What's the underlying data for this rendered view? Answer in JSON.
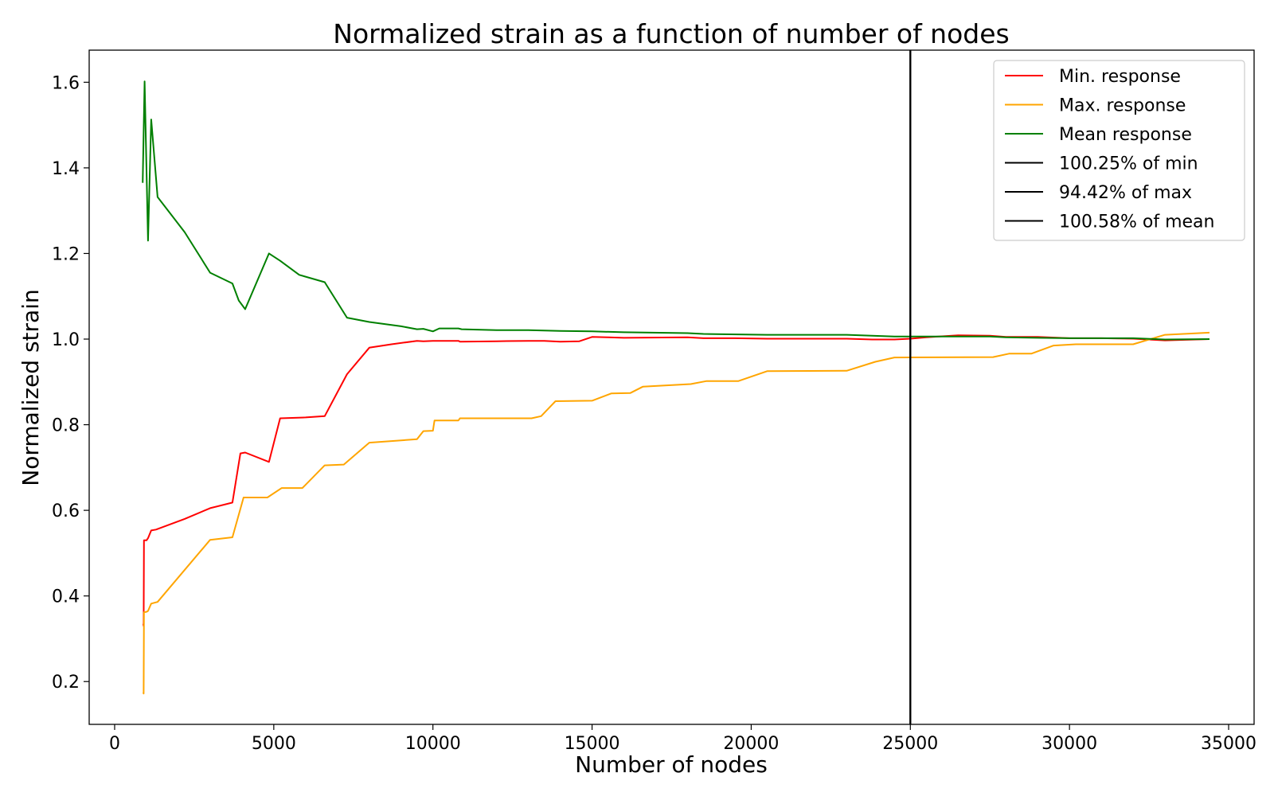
{
  "chart_data": {
    "type": "line",
    "title": "Normalized strain as a function of number of nodes",
    "xlabel": "Number of nodes",
    "ylabel": "Normalized strain",
    "xlim": [
      -800,
      35800
    ],
    "ylim": [
      0.1,
      1.675
    ],
    "xticks": [
      0,
      5000,
      10000,
      15000,
      20000,
      25000,
      30000,
      35000
    ],
    "yticks": [
      0.2,
      0.4,
      0.6,
      0.8,
      1.0,
      1.2,
      1.4,
      1.6
    ],
    "xtick_labels": [
      "0",
      "5000",
      "10000",
      "15000",
      "20000",
      "25000",
      "30000",
      "35000"
    ],
    "ytick_labels": [
      "0.2",
      "0.4",
      "0.6",
      "0.8",
      "1.0",
      "1.2",
      "1.4",
      "1.6"
    ],
    "grid": false,
    "legend_position": "top-right",
    "series": [
      {
        "name": "Min. response",
        "color": "#ff0000",
        "x": [
          900,
          910,
          920,
          1000,
          1050,
          1150,
          1300,
          2200,
          3000,
          3700,
          3950,
          4100,
          4850,
          5200,
          6000,
          6600,
          7300,
          8000,
          8700,
          9500,
          9700,
          10000,
          10400,
          10800,
          10850,
          12000,
          13000,
          13500,
          14000,
          14600,
          15000,
          15500,
          16000,
          18000,
          18500,
          19500,
          20500,
          21500,
          23000,
          23800,
          24500,
          25000,
          25500,
          26500,
          27500,
          28000,
          29000,
          30000,
          31000,
          32000,
          33000,
          34400
        ],
        "y": [
          0.335,
          0.33,
          0.53,
          0.53,
          0.535,
          0.553,
          0.555,
          0.58,
          0.605,
          0.618,
          0.733,
          0.735,
          0.713,
          0.815,
          0.817,
          0.82,
          0.918,
          0.98,
          0.988,
          0.996,
          0.995,
          0.996,
          0.996,
          0.996,
          0.994,
          0.995,
          0.996,
          0.996,
          0.994,
          0.995,
          1.005,
          1.004,
          1.003,
          1.004,
          1.002,
          1.002,
          1.001,
          1.001,
          1.001,
          0.999,
          0.999,
          1.001,
          1.004,
          1.009,
          1.008,
          1.005,
          1.005,
          1.002,
          1.002,
          1.001,
          0.997,
          1.0
        ]
      },
      {
        "name": "Max. response",
        "color": "#ffa500",
        "x": [
          900,
          910,
          920,
          1000,
          1050,
          1150,
          1350,
          3000,
          3700,
          4050,
          4800,
          5250,
          5900,
          6600,
          7200,
          8000,
          9500,
          9700,
          10000,
          10050,
          10800,
          10850,
          13100,
          13400,
          13850,
          15000,
          15600,
          16200,
          16600,
          18100,
          18600,
          19600,
          20500,
          23000,
          23900,
          24500,
          27600,
          28100,
          28800,
          29500,
          30200,
          32000,
          33000,
          34400
        ],
        "y": [
          0.175,
          0.172,
          0.362,
          0.363,
          0.365,
          0.382,
          0.386,
          0.531,
          0.537,
          0.63,
          0.63,
          0.652,
          0.652,
          0.705,
          0.707,
          0.758,
          0.766,
          0.785,
          0.786,
          0.81,
          0.81,
          0.815,
          0.815,
          0.82,
          0.855,
          0.856,
          0.873,
          0.874,
          0.889,
          0.895,
          0.902,
          0.902,
          0.925,
          0.926,
          0.947,
          0.957,
          0.958,
          0.966,
          0.966,
          0.985,
          0.988,
          0.988,
          1.01,
          1.015
        ]
      },
      {
        "name": "Mean response",
        "color": "#008000",
        "x": [
          880,
          940,
          1050,
          1150,
          1350,
          2200,
          3000,
          3700,
          3900,
          4100,
          4850,
          5200,
          5800,
          6600,
          7300,
          8000,
          9000,
          9500,
          9700,
          10000,
          10200,
          10800,
          10900,
          12000,
          13000,
          14000,
          15000,
          16000,
          18000,
          18500,
          20500,
          23000,
          24500,
          26000,
          27500,
          28000,
          29000,
          30000,
          31000,
          32000,
          33000,
          34400
        ],
        "y": [
          1.365,
          1.602,
          1.23,
          1.513,
          1.332,
          1.25,
          1.155,
          1.13,
          1.09,
          1.07,
          1.2,
          1.183,
          1.15,
          1.133,
          1.05,
          1.04,
          1.03,
          1.023,
          1.024,
          1.018,
          1.025,
          1.025,
          1.023,
          1.021,
          1.021,
          1.019,
          1.018,
          1.016,
          1.014,
          1.012,
          1.01,
          1.01,
          1.006,
          1.006,
          1.006,
          1.004,
          1.003,
          1.002,
          1.002,
          1.002,
          0.999,
          1.0
        ]
      }
    ],
    "reference_lines": [
      {
        "name": "100.25% of min",
        "color": "#000000",
        "x": 25000
      },
      {
        "name": "94.42% of max",
        "color": "#000000",
        "x": 25000
      },
      {
        "name": "100.58% of mean",
        "color": "#000000",
        "x": 25000
      }
    ]
  }
}
